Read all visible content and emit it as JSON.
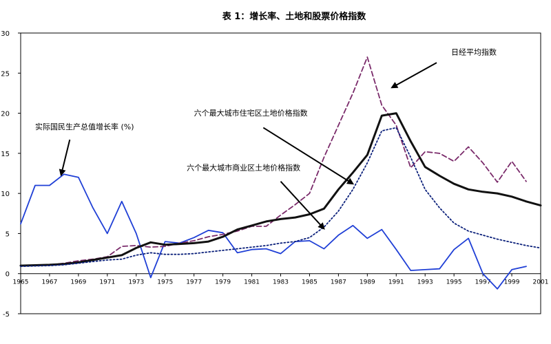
{
  "chart_data": {
    "type": "line",
    "title": "表 1：增长率、土地和股票价格指数",
    "xlabel": "",
    "ylabel": "",
    "xlim": [
      1965,
      2001
    ],
    "ylim": [
      -5,
      30
    ],
    "yticks": [
      -5,
      0,
      5,
      10,
      15,
      20,
      25,
      30
    ],
    "ytick_labels": [
      "-5",
      "0",
      "5",
      "10",
      "15",
      "20",
      "25",
      "30"
    ],
    "xticks": [
      1965,
      1967,
      1969,
      1971,
      1973,
      1975,
      1977,
      1979,
      1981,
      1983,
      1985,
      1987,
      1989,
      1991,
      1993,
      1995,
      1997,
      1999,
      2001
    ],
    "xtick_labels": [
      "1965",
      "1967",
      "1969",
      "1971",
      "1973",
      "1975",
      "1977",
      "1979",
      "1981",
      "1983",
      "1985",
      "1987",
      "1989",
      "1991",
      "1993",
      "1995",
      "1997",
      "1999",
      "2001"
    ],
    "grid": false,
    "legend": "none",
    "series": [
      {
        "name": "实际国民生产总值增长率 (%)",
        "color": "#1f3fd6",
        "style": "solid",
        "x": [
          1965,
          1966,
          1967,
          1968,
          1969,
          1970,
          1971,
          1972,
          1973,
          1974,
          1975,
          1976,
          1977,
          1978,
          1979,
          1980,
          1981,
          1982,
          1983,
          1984,
          1985,
          1986,
          1987,
          1988,
          1989,
          1990,
          1991,
          1992,
          1993,
          1994,
          1995,
          1996,
          1997,
          1998,
          1999,
          2000
        ],
        "values": [
          6.2,
          11.0,
          11.0,
          12.4,
          12.0,
          8.2,
          5.0,
          9.0,
          5.0,
          -0.5,
          4.0,
          3.8,
          4.5,
          5.4,
          5.1,
          2.6,
          3.0,
          3.1,
          2.5,
          4.0,
          4.1,
          3.1,
          4.8,
          6.0,
          4.4,
          5.5,
          3.0,
          0.4,
          0.5,
          0.6,
          3.0,
          4.4,
          0.0,
          -1.9,
          0.5,
          0.9
        ]
      },
      {
        "name": "日经平均指数",
        "color": "#7a2a6a",
        "style": "dashed",
        "x": [
          1965,
          1966,
          1967,
          1968,
          1969,
          1970,
          1971,
          1972,
          1973,
          1974,
          1975,
          1976,
          1977,
          1978,
          1979,
          1980,
          1981,
          1982,
          1983,
          1984,
          1985,
          1986,
          1987,
          1988,
          1989,
          1990,
          1991,
          1992,
          1993,
          1994,
          1995,
          1996,
          1997,
          1998,
          1999,
          2000
        ],
        "values": [
          1.0,
          1.0,
          1.1,
          1.3,
          1.6,
          1.8,
          2.1,
          3.4,
          3.5,
          3.3,
          3.4,
          3.8,
          4.1,
          4.6,
          4.9,
          5.3,
          5.9,
          5.9,
          7.3,
          8.6,
          10.0,
          14.5,
          18.5,
          22.5,
          27.0,
          21.0,
          18.5,
          13.2,
          15.2,
          15.0,
          14.0,
          15.8,
          13.8,
          11.4,
          14.0,
          11.5
        ]
      },
      {
        "name": "六个最大城市住宅区土地价格指数",
        "color": "#111111",
        "style": "solid-thick",
        "x": [
          1965,
          1966,
          1967,
          1968,
          1969,
          1970,
          1971,
          1972,
          1973,
          1974,
          1975,
          1976,
          1977,
          1978,
          1979,
          1980,
          1981,
          1982,
          1983,
          1984,
          1985,
          1986,
          1987,
          1988,
          1989,
          1990,
          1991,
          1992,
          1993,
          1994,
          1995,
          1996,
          1997,
          1998,
          1999,
          2000,
          2001
        ],
        "values": [
          1.0,
          1.05,
          1.1,
          1.2,
          1.4,
          1.7,
          2.0,
          2.3,
          3.2,
          3.9,
          3.6,
          3.7,
          3.8,
          4.0,
          4.6,
          5.5,
          6.0,
          6.5,
          6.8,
          7.0,
          7.4,
          8.1,
          10.5,
          12.6,
          14.8,
          19.7,
          20.0,
          16.5,
          13.3,
          12.2,
          11.2,
          10.5,
          10.2,
          10.0,
          9.6,
          9.0,
          8.5
        ]
      },
      {
        "name": "六个最大城市商业区土地价格指数",
        "color": "#0a1f7a",
        "style": "dotted",
        "x": [
          1965,
          1966,
          1967,
          1968,
          1969,
          1970,
          1971,
          1972,
          1973,
          1974,
          1975,
          1976,
          1977,
          1978,
          1979,
          1980,
          1981,
          1982,
          1983,
          1984,
          1985,
          1986,
          1987,
          1988,
          1989,
          1990,
          1991,
          1992,
          1993,
          1994,
          1995,
          1996,
          1997,
          1998,
          1999,
          2000,
          2001
        ],
        "values": [
          0.9,
          0.95,
          1.0,
          1.1,
          1.3,
          1.5,
          1.7,
          1.8,
          2.3,
          2.6,
          2.4,
          2.4,
          2.5,
          2.7,
          2.9,
          3.1,
          3.3,
          3.5,
          3.8,
          4.0,
          4.5,
          5.8,
          7.8,
          10.5,
          13.8,
          17.8,
          18.2,
          14.5,
          10.5,
          8.2,
          6.3,
          5.3,
          4.8,
          4.3,
          3.9,
          3.5,
          3.2
        ]
      }
    ],
    "annotations": [
      {
        "text": "实际国民生产总值增长率 (%)",
        "x": 1966.0,
        "y": 18.0
      },
      {
        "text": "日经平均指数",
        "x": 1994.8,
        "y": 27.3
      },
      {
        "text": "六个最大城市住宅区土地价格指数",
        "x": 1977.0,
        "y": 19.7
      },
      {
        "text": "六个最大城市商业区土地价格指数",
        "x": 1976.5,
        "y": 12.9
      }
    ]
  }
}
